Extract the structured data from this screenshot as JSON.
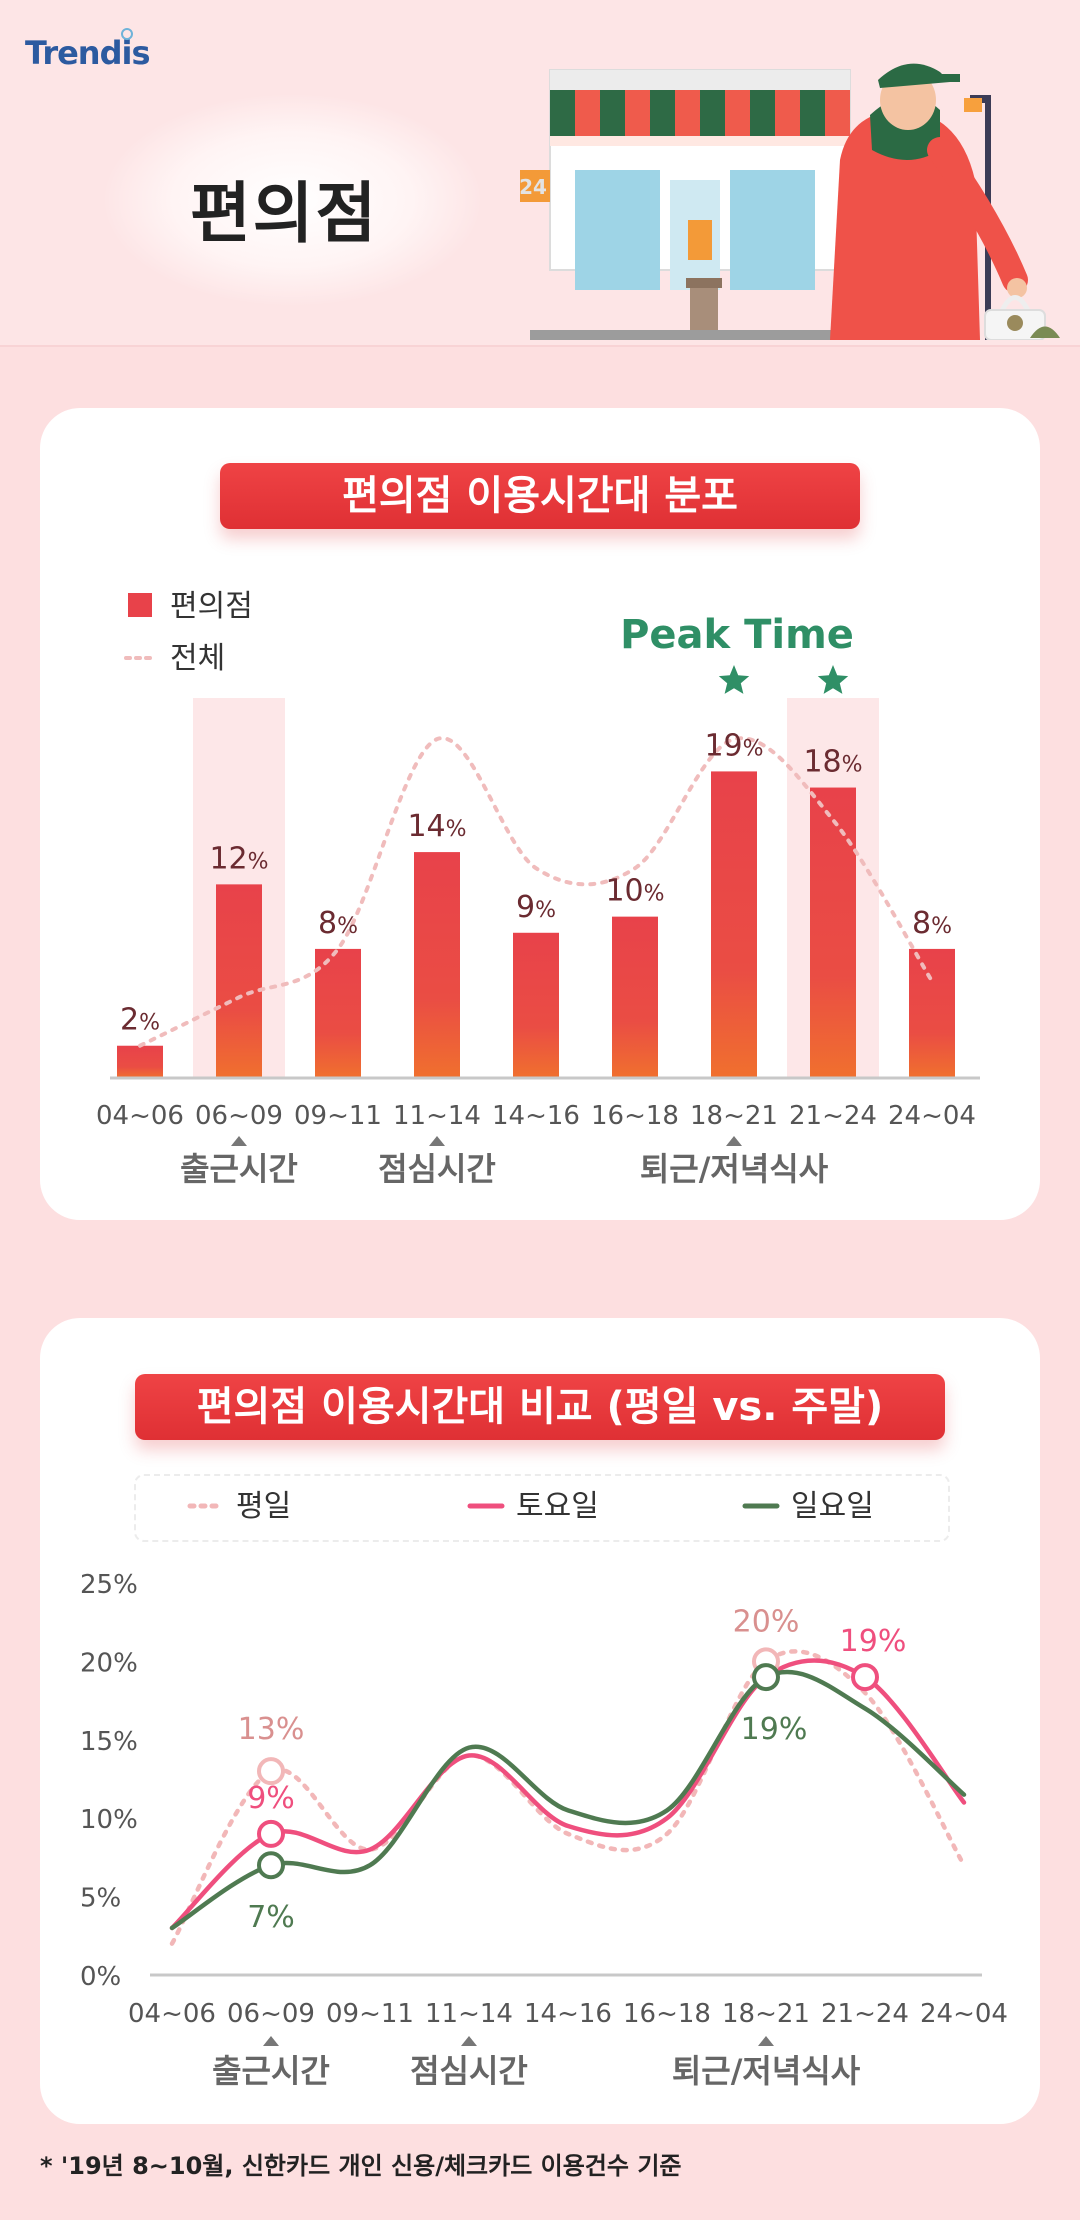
{
  "brand": {
    "logo_text": "Trendis"
  },
  "page_title": "편의점",
  "illustration": {
    "store_sign_text": "24"
  },
  "chart_data": [
    {
      "type": "bar",
      "title": "편의점 이용시간대 분포",
      "categories": [
        "04~06",
        "06~09",
        "09~11",
        "11~14",
        "14~16",
        "16~18",
        "18~21",
        "21~24",
        "24~04"
      ],
      "series": [
        {
          "name": "편의점",
          "values": [
            2,
            12,
            8,
            14,
            9,
            10,
            19,
            18,
            8
          ],
          "color": "#e8424a"
        },
        {
          "name": "전체",
          "values": [
            2,
            5,
            8,
            21,
            13,
            13,
            21,
            16,
            6
          ],
          "color": "#f0bcbc",
          "style": "dashed-line"
        }
      ],
      "value_suffix": "%",
      "annotation": "Peak Time",
      "highlighted_categories": [
        "06~09",
        "21~24"
      ],
      "starred_categories": [
        "18~21",
        "21~24"
      ],
      "period_labels": [
        {
          "text": "출근시간",
          "category": "06~09"
        },
        {
          "text": "점심시간",
          "category": "11~14"
        },
        {
          "text": "퇴근/저녁식사",
          "category": "18~21"
        }
      ],
      "ylim": [
        0,
        22
      ],
      "grid": false,
      "legend": "top-left"
    },
    {
      "type": "line",
      "title": "편의점 이용시간대 비교 (평일 vs. 주말)",
      "categories": [
        "04~06",
        "06~09",
        "09~11",
        "11~14",
        "14~16",
        "16~18",
        "18~21",
        "21~24",
        "24~04"
      ],
      "series": [
        {
          "name": "평일",
          "values": [
            2,
            13,
            8,
            14,
            9,
            9,
            20,
            18,
            7
          ],
          "color": "#f2b7b8",
          "style": "dashed"
        },
        {
          "name": "토요일",
          "values": [
            3,
            9,
            8,
            14,
            9.5,
            10,
            19,
            19,
            11
          ],
          "color": "#ef4f7e",
          "style": "solid"
        },
        {
          "name": "일요일",
          "values": [
            3,
            7,
            7,
            14.5,
            10.5,
            10.5,
            19,
            17,
            11.5
          ],
          "color": "#4f7a51",
          "style": "solid"
        }
      ],
      "labeled_points": [
        {
          "series": "평일",
          "category": "06~09",
          "label": "13%"
        },
        {
          "series": "토요일",
          "category": "06~09",
          "label": "9%"
        },
        {
          "series": "일요일",
          "category": "06~09",
          "label": "7%"
        },
        {
          "series": "평일",
          "category": "18~21",
          "label": "20%"
        },
        {
          "series": "일요일",
          "category": "18~21",
          "label": "19%"
        },
        {
          "series": "토요일",
          "category": "21~24",
          "label": "19%"
        }
      ],
      "yticks": [
        "0%",
        "5%",
        "10%",
        "15%",
        "20%",
        "25%"
      ],
      "ylim": [
        0,
        25
      ],
      "period_labels": [
        {
          "text": "출근시간",
          "category": "06~09"
        },
        {
          "text": "점심시간",
          "category": "11~14"
        },
        {
          "text": "퇴근/저녁식사",
          "category": "18~21"
        }
      ],
      "grid": false,
      "legend": "top"
    }
  ],
  "footnote": "* '19년 8~10월, 신한카드 개인 신용/체크카드 이용건수 기준"
}
